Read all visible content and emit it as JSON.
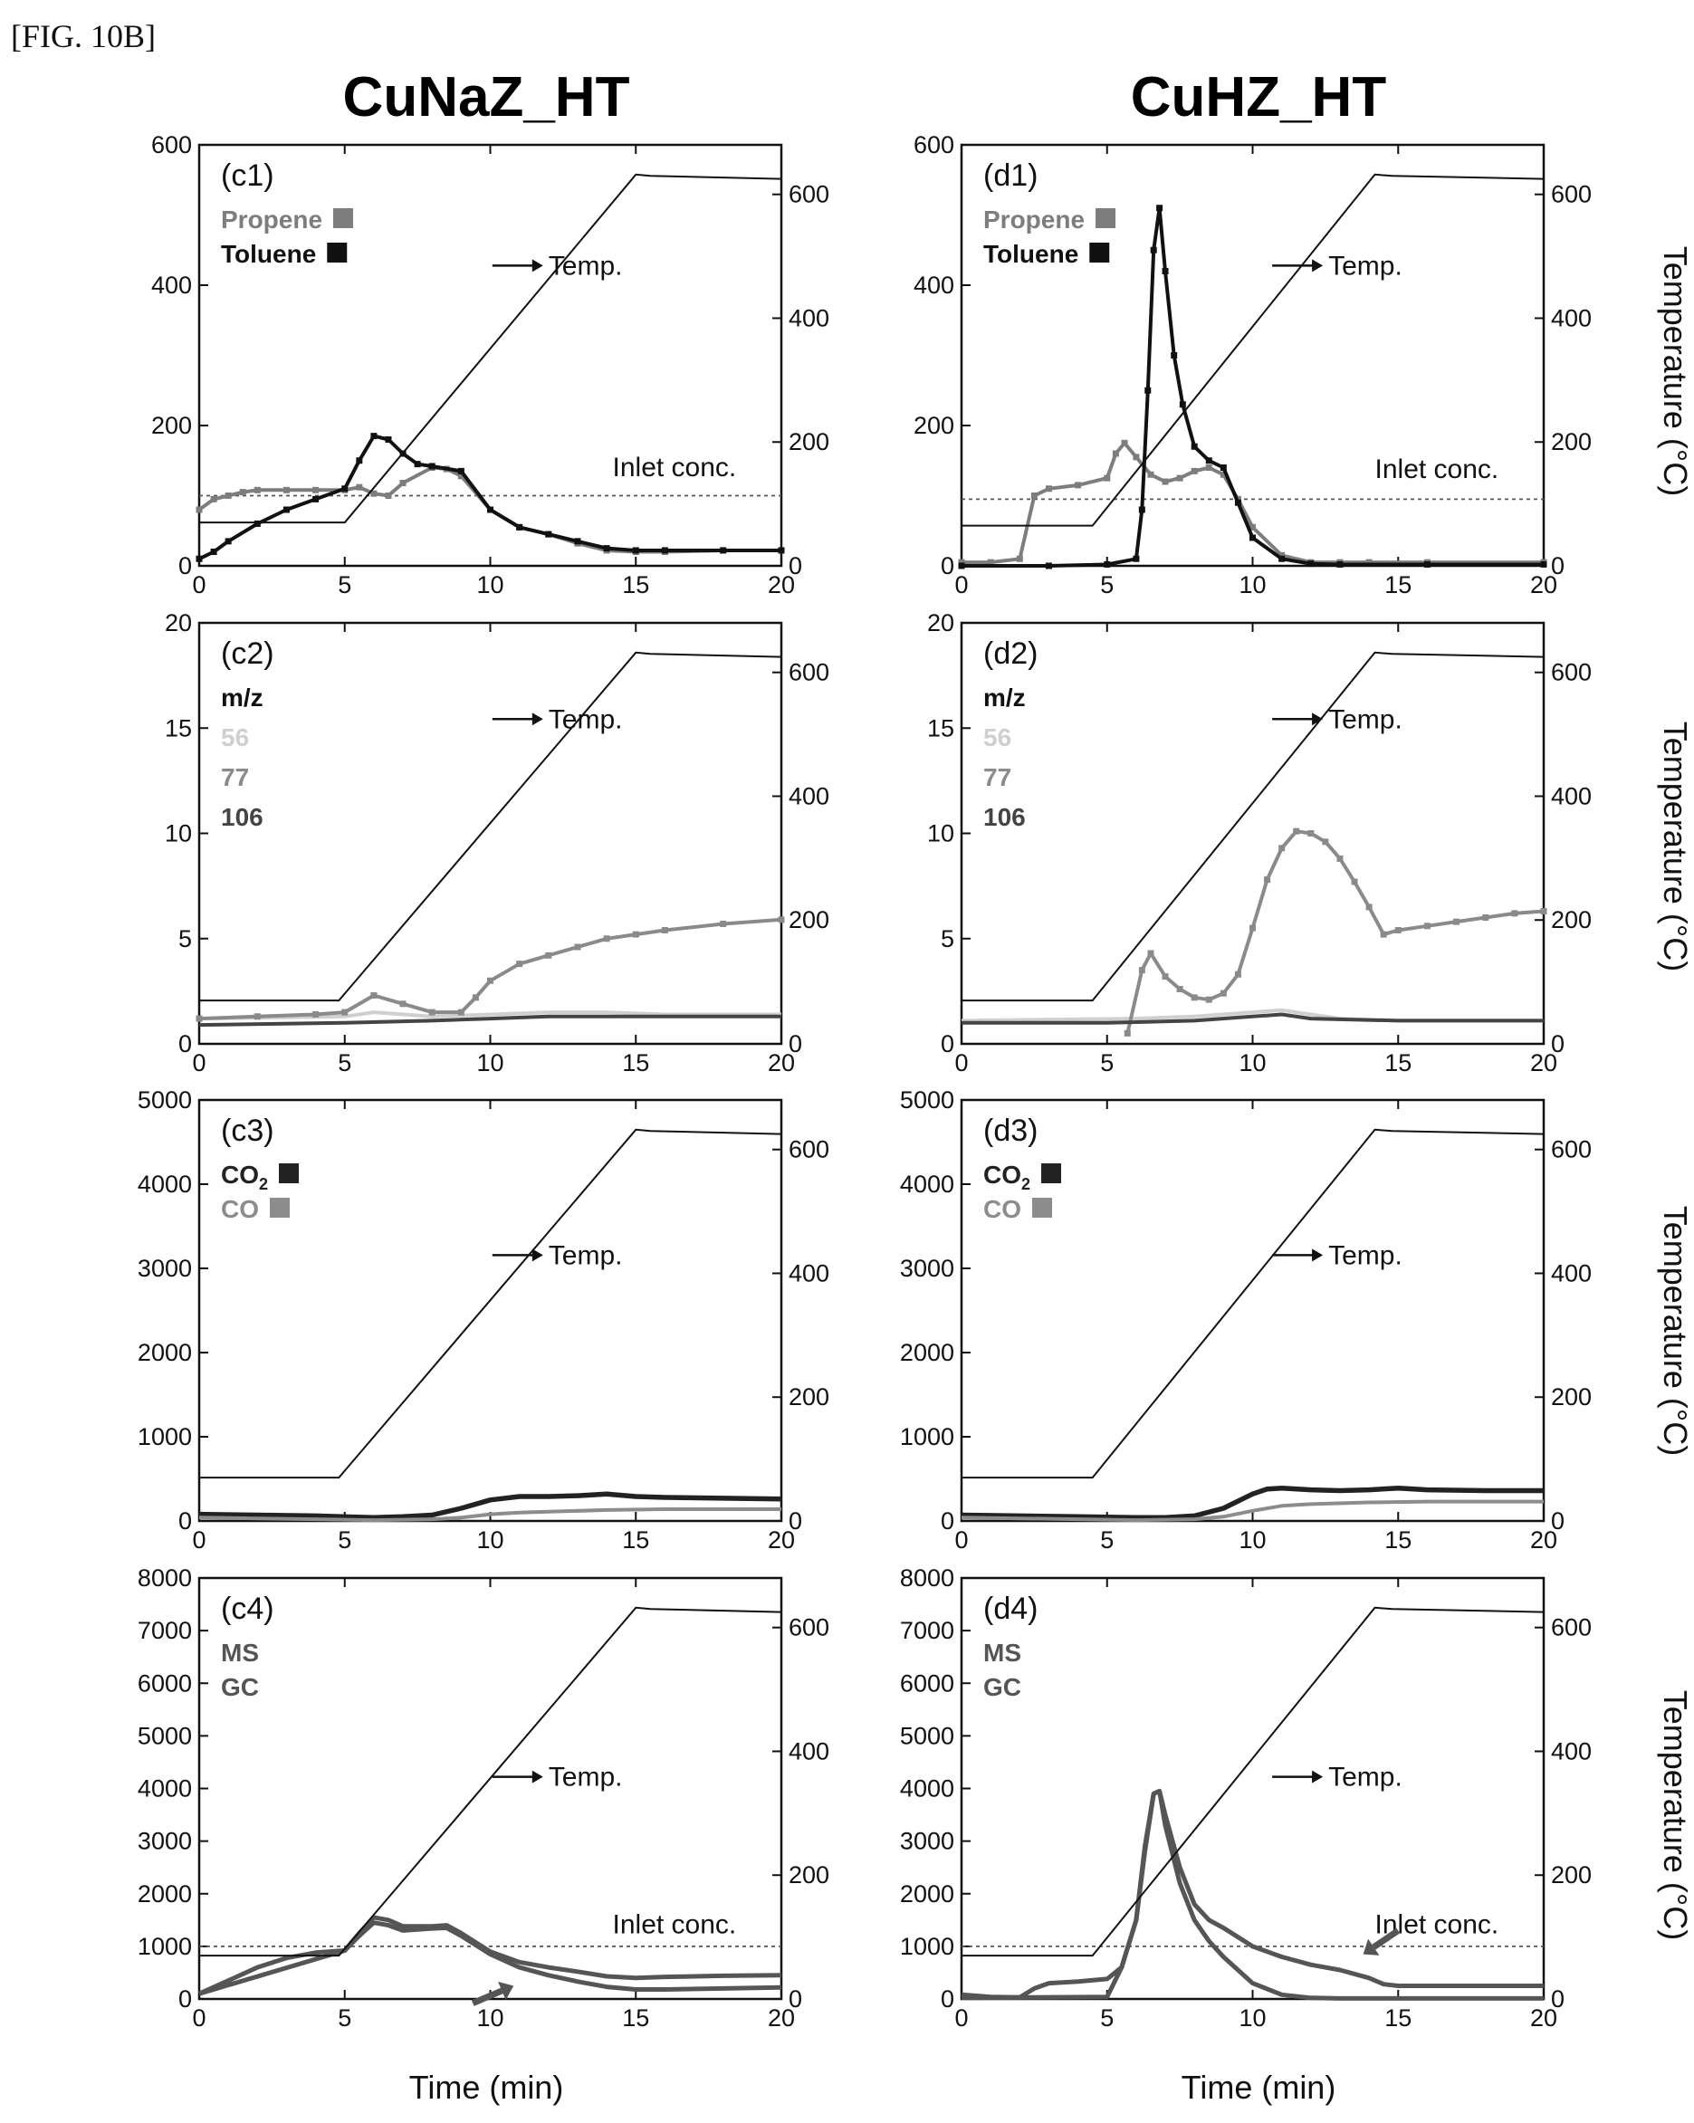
{
  "figure_label": "[FIG. 10B]",
  "columns": [
    "CuNaZ_HT",
    "CuHZ_HT"
  ],
  "shared": {
    "xlabel": "Time (min)",
    "y2label": "Temperature (°C)",
    "xlim": [
      0,
      20
    ],
    "xticks": [
      0,
      5,
      10,
      15,
      20
    ],
    "y2lim": [
      0,
      680
    ],
    "y2ticks": [
      0,
      200,
      400,
      600
    ],
    "temp_label": "Temp.",
    "inlet_label": "Inlet conc."
  },
  "colors": {
    "temperature": "#111111",
    "propene": "#7d7d7d",
    "toluene": "#111111",
    "mz56": "#cfcfcf",
    "mz77": "#8a8a8a",
    "mz106": "#444444",
    "co2": "#222222",
    "co": "#8c8c8c",
    "ms": "#555555",
    "gc": "#555555"
  },
  "chart_data": [
    {
      "id": "c1",
      "type": "line",
      "panel_label": "(c1)",
      "column": 0,
      "row": 0,
      "ylim": [
        0,
        600
      ],
      "yticks": [
        0,
        200,
        400,
        600
      ],
      "legend_title": "",
      "temp_label_at": [
        12,
        415
      ],
      "inlet": {
        "value": 100,
        "label_at": [
          14.2,
          128
        ]
      },
      "temperature": {
        "x": [
          0,
          5,
          15,
          15.5,
          20
        ],
        "y": [
          70,
          70,
          632,
          630,
          625
        ]
      },
      "series": [
        {
          "name": "Propene",
          "color_key": "propene",
          "marker": true,
          "x": [
            0,
            0.5,
            1,
            1.5,
            2,
            3,
            4,
            5,
            5.5,
            6,
            6.5,
            7,
            8,
            8.5,
            9,
            10,
            11,
            12,
            13,
            14,
            15,
            16,
            18,
            20
          ],
          "y": [
            80,
            95,
            100,
            105,
            108,
            108,
            108,
            108,
            112,
            103,
            100,
            118,
            140,
            138,
            128,
            80,
            55,
            45,
            32,
            22,
            20,
            20,
            22,
            22
          ]
        },
        {
          "name": "Toluene",
          "color_key": "toluene",
          "marker": true,
          "x": [
            0,
            0.5,
            1,
            2,
            3,
            4,
            5,
            5.5,
            6,
            6.5,
            7,
            7.5,
            8,
            9,
            10,
            11,
            12,
            13,
            14,
            15,
            16,
            18,
            20
          ],
          "y": [
            10,
            20,
            35,
            60,
            80,
            95,
            110,
            150,
            185,
            180,
            160,
            145,
            142,
            135,
            80,
            55,
            45,
            35,
            25,
            22,
            22,
            22,
            22
          ]
        }
      ]
    },
    {
      "id": "d1",
      "type": "line",
      "panel_label": "(d1)",
      "column": 1,
      "row": 0,
      "ylim": [
        0,
        600
      ],
      "yticks": [
        0,
        200,
        400,
        600
      ],
      "legend_title": "",
      "temp_label_at": [
        12.6,
        415
      ],
      "inlet": {
        "value": 95,
        "label_at": [
          14.2,
          125
        ]
      },
      "temperature": {
        "x": [
          0,
          4.5,
          14.2,
          14.8,
          20
        ],
        "y": [
          65,
          65,
          632,
          630,
          625
        ]
      },
      "series": [
        {
          "name": "Propene",
          "color_key": "propene",
          "marker": true,
          "x": [
            0,
            1,
            2,
            2.5,
            3,
            4,
            5,
            5.3,
            5.6,
            6,
            6.5,
            7,
            7.5,
            8,
            8.5,
            9,
            9.5,
            10,
            11,
            12,
            13,
            14,
            16,
            20
          ],
          "y": [
            5,
            5,
            10,
            100,
            110,
            115,
            125,
            160,
            175,
            155,
            130,
            120,
            125,
            135,
            140,
            130,
            95,
            55,
            15,
            5,
            5,
            5,
            5,
            5
          ]
        },
        {
          "name": "Toluene",
          "color_key": "toluene",
          "marker": true,
          "x": [
            0,
            3,
            5,
            6,
            6.2,
            6.4,
            6.6,
            6.8,
            7.0,
            7.3,
            7.6,
            8,
            8.5,
            9,
            9.5,
            10,
            11,
            12,
            13,
            16,
            20
          ],
          "y": [
            0,
            0,
            2,
            10,
            80,
            250,
            450,
            510,
            420,
            300,
            230,
            170,
            150,
            140,
            90,
            40,
            10,
            3,
            2,
            2,
            2
          ]
        }
      ]
    },
    {
      "id": "c2",
      "type": "line",
      "panel_label": "(c2)",
      "column": 0,
      "row": 1,
      "ylim": [
        0,
        20
      ],
      "yticks": [
        0,
        5,
        10,
        15,
        20
      ],
      "legend_title": "m/z",
      "temp_label_at": [
        12,
        15
      ],
      "temperature": {
        "x": [
          0,
          4.8,
          15,
          15.5,
          20
        ],
        "y": [
          70,
          70,
          632,
          630,
          625
        ]
      },
      "series": [
        {
          "name": "56",
          "color_key": "mz56",
          "marker": false,
          "x": [
            0,
            5,
            6,
            8,
            10,
            12,
            14,
            16,
            18,
            20
          ],
          "y": [
            1.2,
            1.3,
            1.5,
            1.3,
            1.4,
            1.5,
            1.5,
            1.4,
            1.4,
            1.4
          ]
        },
        {
          "name": "77",
          "color_key": "mz77",
          "marker": true,
          "x": [
            0,
            2,
            4,
            5,
            6,
            7,
            8,
            9,
            9.5,
            10,
            11,
            12,
            13,
            14,
            15,
            16,
            18,
            20
          ],
          "y": [
            1.2,
            1.3,
            1.4,
            1.5,
            2.3,
            1.9,
            1.5,
            1.5,
            2.2,
            3.0,
            3.8,
            4.2,
            4.6,
            5.0,
            5.2,
            5.4,
            5.7,
            5.9
          ]
        },
        {
          "name": "106",
          "color_key": "mz106",
          "marker": false,
          "x": [
            0,
            5,
            8,
            10,
            12,
            15,
            18,
            20
          ],
          "y": [
            0.9,
            1.0,
            1.1,
            1.2,
            1.3,
            1.3,
            1.3,
            1.3
          ]
        }
      ]
    },
    {
      "id": "d2",
      "type": "line",
      "panel_label": "(d2)",
      "column": 1,
      "row": 1,
      "ylim": [
        0,
        20
      ],
      "yticks": [
        0,
        5,
        10,
        15,
        20
      ],
      "legend_title": "m/z",
      "temp_label_at": [
        12.6,
        15
      ],
      "temperature": {
        "x": [
          0,
          4.5,
          14.2,
          14.8,
          20
        ],
        "y": [
          70,
          70,
          632,
          630,
          625
        ]
      },
      "series": [
        {
          "name": "56",
          "color_key": "mz56",
          "marker": false,
          "x": [
            0,
            6,
            8,
            10,
            11,
            12,
            13,
            15,
            20
          ],
          "y": [
            1.1,
            1.2,
            1.3,
            1.5,
            1.6,
            1.4,
            1.2,
            1.1,
            1.1
          ]
        },
        {
          "name": "77",
          "color_key": "mz77",
          "marker": true,
          "x": [
            5.7,
            6.2,
            6.5,
            7,
            7.5,
            8,
            8.5,
            9,
            9.5,
            10,
            10.5,
            11,
            11.5,
            12,
            12.5,
            13,
            13.5,
            14,
            14.5,
            15,
            16,
            17,
            18,
            19,
            20
          ],
          "y": [
            0.5,
            3.5,
            4.3,
            3.2,
            2.6,
            2.2,
            2.1,
            2.4,
            3.3,
            5.5,
            7.8,
            9.3,
            10.1,
            10.0,
            9.6,
            8.8,
            7.7,
            6.5,
            5.2,
            5.4,
            5.6,
            5.8,
            6.0,
            6.2,
            6.3
          ]
        },
        {
          "name": "106",
          "color_key": "mz106",
          "marker": false,
          "x": [
            0,
            5,
            8,
            10,
            11,
            12,
            15,
            20
          ],
          "y": [
            1.0,
            1.0,
            1.1,
            1.3,
            1.4,
            1.2,
            1.1,
            1.1
          ]
        }
      ]
    },
    {
      "id": "c3",
      "type": "line",
      "panel_label": "(c3)",
      "column": 0,
      "row": 2,
      "ylim": [
        0,
        5000
      ],
      "yticks": [
        0,
        1000,
        2000,
        3000,
        4000,
        5000
      ],
      "legend_title": "",
      "temp_label_at": [
        12,
        3050
      ],
      "temperature": {
        "x": [
          0,
          4.8,
          15,
          15.5,
          20
        ],
        "y": [
          70,
          70,
          632,
          630,
          625
        ]
      },
      "series": [
        {
          "name": "CO2",
          "label_main": "CO",
          "label_sub": "2",
          "color_key": "co2",
          "marker": false,
          "x": [
            0,
            2,
            4,
            6,
            7,
            8,
            9,
            10,
            11,
            12,
            13,
            14,
            15,
            16,
            18,
            20
          ],
          "y": [
            80,
            70,
            60,
            40,
            50,
            70,
            150,
            250,
            290,
            290,
            300,
            320,
            290,
            280,
            270,
            260
          ]
        },
        {
          "name": "CO",
          "color_key": "co",
          "marker": false,
          "x": [
            0,
            2,
            4,
            6,
            8,
            9,
            10,
            11,
            12,
            14,
            16,
            18,
            20
          ],
          "y": [
            40,
            30,
            20,
            10,
            20,
            40,
            80,
            100,
            110,
            130,
            140,
            140,
            140
          ]
        }
      ]
    },
    {
      "id": "d3",
      "type": "line",
      "panel_label": "(d3)",
      "column": 1,
      "row": 2,
      "ylim": [
        0,
        5000
      ],
      "yticks": [
        0,
        1000,
        2000,
        3000,
        4000,
        5000
      ],
      "legend_title": "",
      "temp_label_at": [
        12.6,
        3050
      ],
      "temperature": {
        "x": [
          0,
          4.5,
          14.2,
          14.8,
          20
        ],
        "y": [
          70,
          70,
          632,
          630,
          625
        ]
      },
      "series": [
        {
          "name": "CO2",
          "label_main": "CO",
          "label_sub": "2",
          "color_key": "co2",
          "marker": false,
          "x": [
            0,
            2,
            4,
            6,
            7,
            8,
            9,
            10,
            10.5,
            11,
            12,
            13,
            14,
            15,
            16,
            18,
            20
          ],
          "y": [
            70,
            60,
            50,
            40,
            40,
            60,
            150,
            320,
            380,
            390,
            370,
            360,
            370,
            390,
            370,
            360,
            360
          ]
        },
        {
          "name": "CO",
          "color_key": "co",
          "marker": false,
          "x": [
            0,
            2,
            4,
            6,
            8,
            9,
            10,
            11,
            12,
            14,
            16,
            18,
            20
          ],
          "y": [
            40,
            30,
            20,
            10,
            20,
            50,
            120,
            180,
            200,
            220,
            230,
            230,
            230
          ]
        }
      ]
    },
    {
      "id": "c4",
      "type": "line",
      "panel_label": "(c4)",
      "column": 0,
      "row": 3,
      "ylim": [
        0,
        8000
      ],
      "yticks": [
        0,
        1000,
        2000,
        3000,
        4000,
        5000,
        6000,
        7000,
        8000
      ],
      "legend_title": "",
      "temp_label_at": [
        12,
        4050
      ],
      "inlet": {
        "value": 1000,
        "label_at": [
          14.2,
          1250
        ]
      },
      "temperature": {
        "x": [
          0,
          4.8,
          15,
          15.5,
          20
        ],
        "y": [
          70,
          70,
          632,
          630,
          625
        ]
      },
      "series": [
        {
          "name": "MS",
          "color_key": "ms",
          "marker": false,
          "x": [
            0,
            1,
            2,
            3,
            4,
            5,
            5.5,
            6,
            6.5,
            7,
            8,
            8.5,
            9,
            10,
            11,
            12,
            13,
            14,
            15,
            16,
            18,
            20
          ],
          "y": [
            100,
            350,
            600,
            780,
            880,
            920,
            1250,
            1550,
            1500,
            1380,
            1380,
            1400,
            1250,
            900,
            700,
            600,
            520,
            430,
            400,
            420,
            440,
            450
          ]
        },
        {
          "name": "GC",
          "color_key": "gc",
          "marker": false,
          "x": [
            0,
            5,
            5.5,
            6,
            6.5,
            7,
            8,
            8.5,
            9,
            10,
            11,
            12,
            13,
            14,
            15,
            16,
            18,
            20
          ],
          "y": [
            100,
            920,
            1200,
            1450,
            1400,
            1300,
            1340,
            1350,
            1200,
            850,
            600,
            450,
            330,
            230,
            180,
            180,
            200,
            220
          ]
        }
      ],
      "arrow": {
        "from": [
          9.4,
          -80
        ],
        "to": [
          10.8,
          250
        ]
      }
    },
    {
      "id": "d4",
      "type": "line",
      "panel_label": "(d4)",
      "column": 1,
      "row": 3,
      "ylim": [
        0,
        8000
      ],
      "yticks": [
        0,
        1000,
        2000,
        3000,
        4000,
        5000,
        6000,
        7000,
        8000
      ],
      "legend_title": "",
      "temp_label_at": [
        12.6,
        4050
      ],
      "inlet": {
        "value": 1000,
        "label_at": [
          14.2,
          1250
        ]
      },
      "temperature": {
        "x": [
          0,
          4.5,
          14.2,
          14.8,
          20
        ],
        "y": [
          70,
          70,
          632,
          630,
          625
        ]
      },
      "series": [
        {
          "name": "MS",
          "color_key": "ms",
          "marker": false,
          "x": [
            0,
            1,
            2,
            2.5,
            3,
            4,
            5,
            5.5,
            6,
            6.3,
            6.6,
            6.8,
            7,
            7.5,
            8,
            8.5,
            9,
            10,
            11,
            12,
            13,
            14,
            14.5,
            15,
            16,
            18,
            20
          ],
          "y": [
            80,
            40,
            30,
            200,
            300,
            330,
            380,
            600,
            1500,
            2800,
            3900,
            3950,
            3500,
            2500,
            1800,
            1500,
            1350,
            1000,
            800,
            650,
            550,
            400,
            280,
            250,
            250,
            250,
            250
          ]
        },
        {
          "name": "GC",
          "color_key": "gc",
          "marker": false,
          "x": [
            0,
            5,
            5.5,
            6,
            6.3,
            6.6,
            6.8,
            7,
            7.5,
            8,
            8.5,
            9,
            10,
            11,
            12,
            13,
            14,
            16,
            20
          ],
          "y": [
            20,
            40,
            600,
            1500,
            2900,
            3900,
            3950,
            3300,
            2200,
            1500,
            1100,
            800,
            300,
            80,
            20,
            10,
            10,
            10,
            10
          ]
        }
      ],
      "arrow": {
        "from": [
          15.0,
          1300
        ],
        "to": [
          13.8,
          850
        ]
      }
    }
  ]
}
